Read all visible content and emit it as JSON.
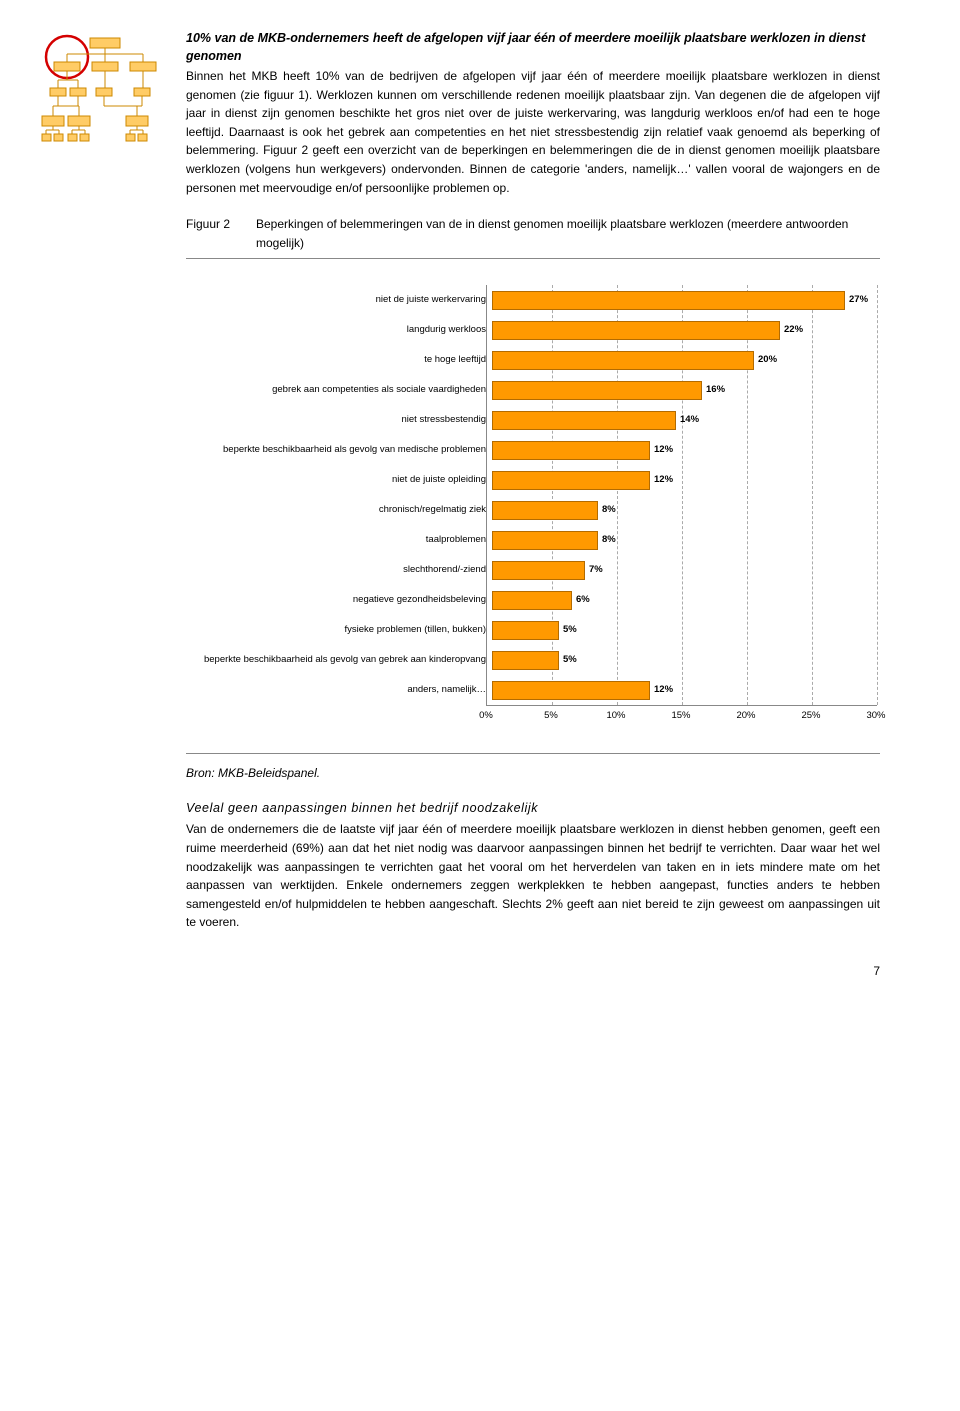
{
  "section1": {
    "heading": "10% van de MKB-ondernemers heeft de afgelopen vijf jaar één of meerdere moeilijk plaatsbare werklozen in dienst genomen",
    "body": "Binnen het MKB heeft 10% van de bedrijven de afgelopen vijf jaar één of meerdere moeilijk plaatsbare werklozen in dienst genomen (zie figuur 1). Werklozen kunnen om verschillende redenen moeilijk plaatsbaar zijn. Van degenen die de afgelopen vijf jaar in dienst zijn genomen beschikte het gros niet over de juiste werkervaring, was langdurig werkloos en/of had een te hoge leeftijd. Daarnaast is ook het gebrek aan competenties en het niet stressbestendig zijn relatief vaak genoemd als beperking of belemmering. Figuur 2 geeft een overzicht van de beperkingen en belemmeringen die de in dienst genomen moeilijk plaatsbare werklozen (volgens hun werkgevers) ondervonden. Binnen de categorie 'anders, namelijk…' vallen vooral de wajongers en de personen met meervoudige en/of persoonlijke problemen op."
  },
  "figure": {
    "key": "Figuur 2",
    "desc": "Beperkingen of belemmeringen van de in dienst genomen moeilijk plaatsbare werklozen (meerdere antwoorden mogelijk)"
  },
  "chart": {
    "type": "bar-horizontal",
    "bar_color": "#ff9900",
    "bar_border_color": "#b36b00",
    "grid_color": "#aaaaaa",
    "axis_color": "#888888",
    "label_fontsize": 9.5,
    "value_fontsize": 9.5,
    "xlim": [
      0,
      30
    ],
    "xtick_step": 5,
    "xticks": [
      "0%",
      "5%",
      "10%",
      "15%",
      "20%",
      "25%",
      "30%"
    ],
    "items": [
      {
        "label": "niet de juiste werkervaring",
        "value": 27,
        "value_label": "27%"
      },
      {
        "label": "langdurig werkloos",
        "value": 22,
        "value_label": "22%"
      },
      {
        "label": "te hoge leeftijd",
        "value": 20,
        "value_label": "20%"
      },
      {
        "label": "gebrek aan competenties als sociale vaardigheden",
        "value": 16,
        "value_label": "16%"
      },
      {
        "label": "niet stressbestendig",
        "value": 14,
        "value_label": "14%"
      },
      {
        "label": "beperkte beschikbaarheid als gevolg van medische problemen",
        "value": 12,
        "value_label": "12%"
      },
      {
        "label": "niet de juiste opleiding",
        "value": 12,
        "value_label": "12%"
      },
      {
        "label": "chronisch/regelmatig ziek",
        "value": 8,
        "value_label": "8%"
      },
      {
        "label": "taalproblemen",
        "value": 8,
        "value_label": "8%"
      },
      {
        "label": "slechthorend/-ziend",
        "value": 7,
        "value_label": "7%"
      },
      {
        "label": "negatieve gezondheidsbeleving",
        "value": 6,
        "value_label": "6%"
      },
      {
        "label": "fysieke problemen (tillen, bukken)",
        "value": 5,
        "value_label": "5%"
      },
      {
        "label": "beperkte beschikbaarheid als gevolg van gebrek aan kinderopvang",
        "value": 5,
        "value_label": "5%"
      },
      {
        "label": "anders, namelijk…",
        "value": 12,
        "value_label": "12%"
      }
    ]
  },
  "source": "Bron: MKB-Beleidspanel.",
  "section2": {
    "heading": "Veelal geen aanpassingen binnen het bedrijf noodzakelijk",
    "body": "Van de ondernemers die de laatste vijf jaar één of meerdere moeilijk plaatsbare werklozen in dienst hebben genomen, geeft een ruime meerderheid (69%) aan dat het niet nodig was daarvoor aanpassingen binnen het bedrijf te verrichten. Daar waar het wel noodzakelijk was aanpassingen te verrichten gaat het vooral om het herverdelen van taken en in iets mindere mate om het aanpassen van werktijden. Enkele ondernemers zeggen werkplekken te hebben aangepast, functies anders te hebben samengesteld en/of hulpmiddelen te hebben aangeschaft. Slechts 2% geeft aan niet bereid te zijn geweest om aanpassingen uit te voeren."
  },
  "page_number": "7"
}
